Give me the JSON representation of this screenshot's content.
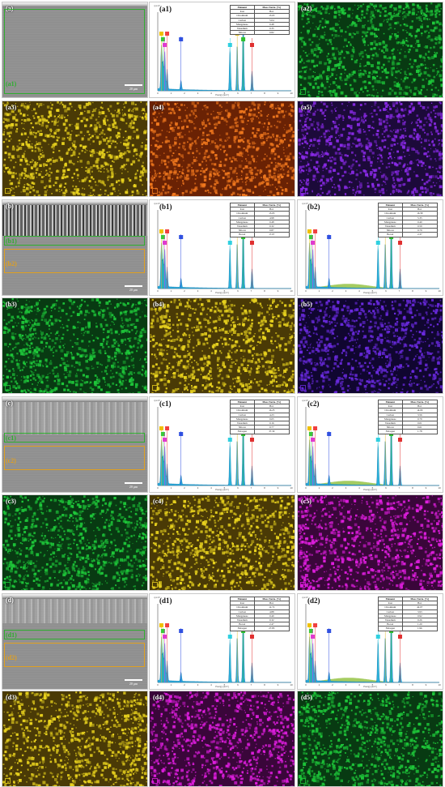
{
  "figure": {
    "scale_bar_text": "20 μm",
    "axis_unit_label": "cps/eV",
    "energy_axis_label": "Energy [keV]",
    "energy_ticks": [
      "0",
      "1",
      "2",
      "3",
      "4",
      "5",
      "6",
      "7",
      "8",
      "9",
      "10"
    ],
    "rows": [
      {
        "sem": {
          "label": "(a)",
          "zones": [
            "(a1)"
          ]
        },
        "spectra": [
          {
            "label": "(a1)",
            "table": {
              "header": [
                "Element",
                "Mass Norm. [%]"
              ],
              "rows": [
                [
                  "Iron",
                  "Bal."
                ],
                [
                  "Chromium",
                  "13.65"
                ],
                [
                  "Carbon",
                  "5.04"
                ],
                [
                  "Manganese",
                  "0.48"
                ],
                [
                  "Vanadium",
                  "0.35"
                ],
                [
                  "Silicon",
                  "0.82"
                ]
              ]
            }
          }
        ],
        "maps": [
          {
            "label": "(a2)",
            "color": "#1ec83a",
            "bg": "#083a12"
          }
        ]
      },
      {
        "maps": [
          {
            "label": "(a3)",
            "color": "#e8d21e",
            "bg": "#4a3a06"
          },
          {
            "label": "(a4)",
            "color": "#f0781e",
            "bg": "#6a2204"
          },
          {
            "label": "(a5)",
            "color": "#8a2ae8",
            "bg": "#1c0a3a"
          }
        ]
      },
      {
        "sem": {
          "label": "(b)",
          "zones": [
            "(b1)",
            "(b2)"
          ]
        },
        "spectra": [
          {
            "label": "(b1)",
            "table": {
              "header": [
                "Element",
                "Mass Norm. [%]"
              ],
              "rows": [
                [
                  "Iron",
                  "Bal."
                ],
                [
                  "Chromium",
                  "13.03"
                ],
                [
                  "Carbon",
                  "4.98"
                ],
                [
                  "Manganese",
                  "0.48"
                ],
                [
                  "Vanadium",
                  "0.32"
                ],
                [
                  "Silicon",
                  "0.87"
                ],
                [
                  "Boron",
                  "17.07"
                ]
              ]
            }
          },
          {
            "label": "(b2)",
            "table": {
              "header": [
                "Element",
                "Mass Norm. [%]"
              ],
              "rows": [
                [
                  "Iron",
                  "Bal."
                ],
                [
                  "Chromium",
                  "16.58"
                ],
                [
                  "Carbon",
                  "5.35"
                ],
                [
                  "Manganese",
                  "0.40"
                ],
                [
                  "Vanadium",
                  "0.59"
                ],
                [
                  "Silicon",
                  "0.79"
                ],
                [
                  "Boron",
                  "2.37"
                ]
              ]
            }
          }
        ]
      },
      {
        "maps": [
          {
            "label": "(b3)",
            "color": "#1ec83a",
            "bg": "#083a12"
          },
          {
            "label": "(b4)",
            "color": "#e8d21e",
            "bg": "#4a3a06"
          },
          {
            "label": "(b5)",
            "color": "#6a2ae0",
            "bg": "#100630"
          }
        ]
      },
      {
        "sem": {
          "label": "(c)",
          "zones": [
            "(c1)",
            "(c2)"
          ]
        },
        "spectra": [
          {
            "label": "(c1)",
            "table": {
              "header": [
                "Element",
                "Mass Norm. [%]"
              ],
              "rows": [
                [
                  "Iron",
                  "Bal."
                ],
                [
                  "Chromium",
                  "16.25"
                ],
                [
                  "Carbon",
                  "4.23"
                ],
                [
                  "Manganese",
                  "0.65"
                ],
                [
                  "Vanadium",
                  "0.16"
                ],
                [
                  "Silicon",
                  "0.77"
                ],
                [
                  "Nitrogen",
                  "37.30"
                ]
              ]
            }
          },
          {
            "label": "(c2)",
            "table": {
              "header": [
                "Element",
                "Mass Norm. [%]"
              ],
              "rows": [
                [
                  "Iron",
                  "Bal."
                ],
                [
                  "Chromium",
                  "14.00"
                ],
                [
                  "Carbon",
                  "3.56"
                ],
                [
                  "Manganese",
                  "0.79"
                ],
                [
                  "Vanadium",
                  "0.01"
                ],
                [
                  "Silicon",
                  "0.61"
                ],
                [
                  "Nitrogen",
                  "1.78"
                ]
              ]
            }
          }
        ]
      },
      {
        "maps": [
          {
            "label": "(c3)",
            "color": "#1ec83a",
            "bg": "#083a12"
          },
          {
            "label": "(c4)",
            "color": "#e8d21e",
            "bg": "#4a3a06"
          },
          {
            "label": "(c5)",
            "color": "#e01ee0",
            "bg": "#3a063a"
          }
        ]
      },
      {
        "sem": {
          "label": "(d)",
          "zones": [
            "(d1)",
            "(d2)"
          ]
        },
        "spectra": [
          {
            "label": "(d1)",
            "table": {
              "header": [
                "Element",
                "Mass Norm. [%]"
              ],
              "rows": [
                [
                  "Iron",
                  "Bal."
                ],
                [
                  "Chromium",
                  "12.72"
                ],
                [
                  "Carbon",
                  "4.88"
                ],
                [
                  "Manganese",
                  "0.40"
                ],
                [
                  "Vanadium",
                  "0.32"
                ],
                [
                  "Boron",
                  "2.47"
                ],
                [
                  "Nitrogen",
                  "27.83"
                ]
              ]
            }
          },
          {
            "label": "(d2)",
            "table": {
              "header": [
                "Element",
                "Mass Norm. [%]"
              ],
              "rows": [
                [
                  "Iron",
                  "Bal."
                ],
                [
                  "Chromium",
                  "42.07"
                ],
                [
                  "Carbon",
                  "3.93"
                ],
                [
                  "Manganese",
                  "0.92"
                ],
                [
                  "Vanadium",
                  "0.26"
                ],
                [
                  "Boron",
                  "1.20"
                ],
                [
                  "Nitrogen",
                  "1.96"
                ]
              ]
            }
          }
        ]
      },
      {
        "maps": [
          {
            "label": "(d3)",
            "color": "#e8d21e",
            "bg": "#4a3a06"
          },
          {
            "label": "(d4)",
            "color": "#e01ee0",
            "bg": "#3a063a"
          },
          {
            "label": "(d5)",
            "color": "#1ec83a",
            "bg": "#083a12"
          }
        ]
      }
    ]
  }
}
